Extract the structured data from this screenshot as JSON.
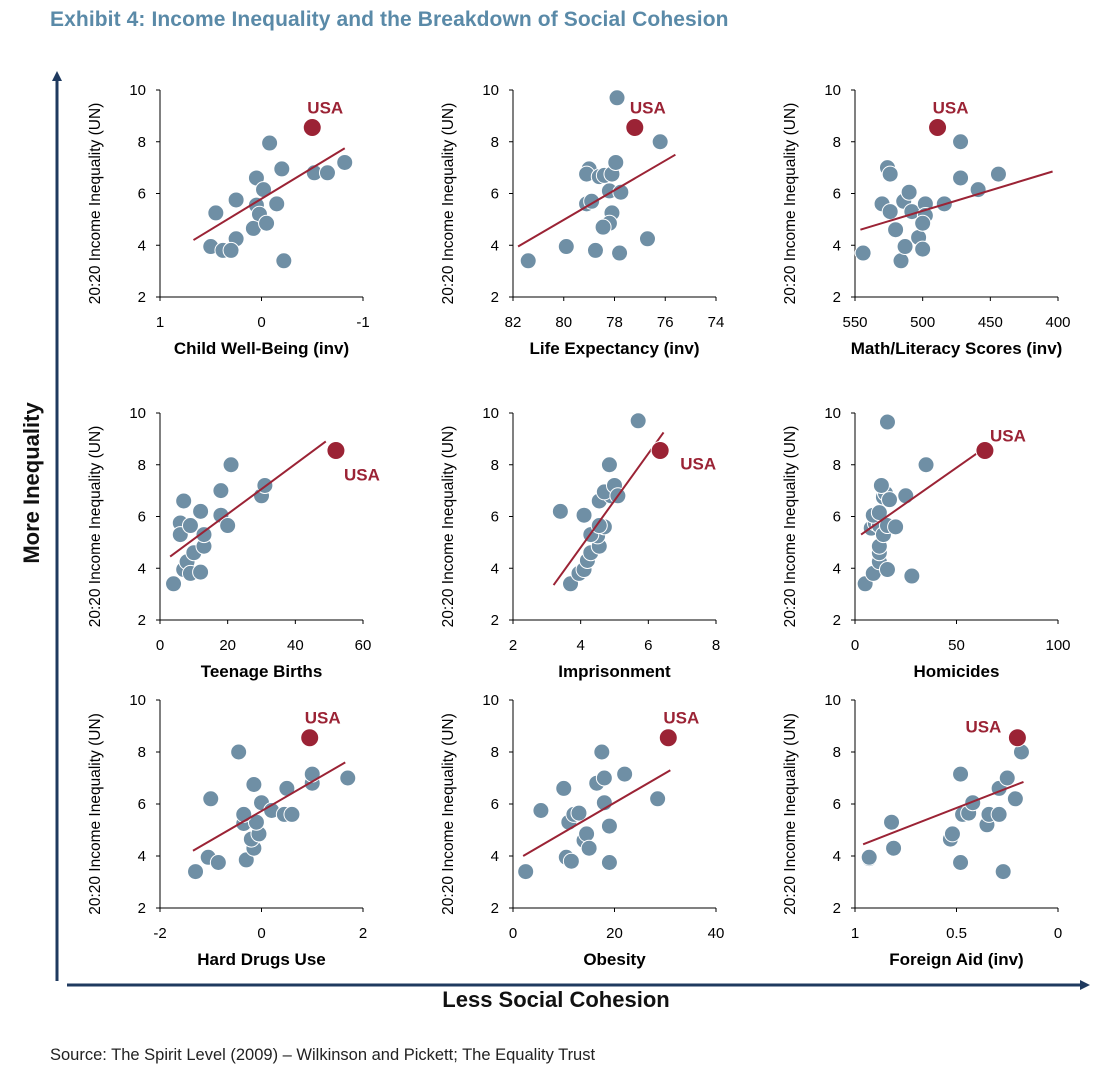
{
  "title": "Exhibit 4: Income Inequality and the Breakdown of Social Cohesion",
  "x_axis_title": "Less Social Cohesion",
  "y_axis_title": "More Inequality",
  "source": "Source: The Spirit Level (2009) – Wilkinson and Pickett; The Equality Trust",
  "colors": {
    "title": "#5a8aa8",
    "point": "#6f8fa5",
    "usa": "#9b2335",
    "trend": "#9b2335",
    "arrow": "#1f3a5f"
  },
  "chart_data": [
    {
      "type": "scatter",
      "xlabel": "Child Well-Being (inv)",
      "ylabel": "20:20 Income Inequality (UN)",
      "xlim": [
        1,
        -1
      ],
      "xticks": [
        1,
        0,
        -1
      ],
      "ylim": [
        2,
        10
      ],
      "yticks": [
        2,
        4,
        6,
        8,
        10
      ],
      "trend": [
        [
          0.67,
          4.2
        ],
        [
          -0.82,
          7.75
        ]
      ],
      "usa": {
        "label": "USA",
        "x": -0.5,
        "y": 8.55,
        "label_pos": "above"
      },
      "points": [
        [
          0.5,
          3.95
        ],
        [
          0.38,
          3.8
        ],
        [
          0.25,
          4.25
        ],
        [
          0.3,
          3.8
        ],
        [
          0.45,
          5.25
        ],
        [
          0.25,
          5.75
        ],
        [
          0.05,
          5.55
        ],
        [
          0.05,
          6.6
        ],
        [
          -0.02,
          6.15
        ],
        [
          0.02,
          5.2
        ],
        [
          0.08,
          4.65
        ],
        [
          -0.05,
          4.85
        ],
        [
          -0.15,
          5.6
        ],
        [
          -0.08,
          7.95
        ],
        [
          -0.2,
          6.95
        ],
        [
          -0.22,
          3.4
        ],
        [
          -0.52,
          6.8
        ],
        [
          -0.65,
          6.8
        ],
        [
          -0.82,
          7.2
        ]
      ]
    },
    {
      "type": "scatter",
      "xlabel": "Life Expectancy (inv)",
      "ylabel": "20:20 Income Inequality (UN)",
      "xlim": [
        82,
        74
      ],
      "xticks": [
        82,
        80,
        78,
        76,
        74
      ],
      "ylim": [
        2,
        10
      ],
      "yticks": [
        2,
        4,
        6,
        8,
        10
      ],
      "trend": [
        [
          81.8,
          3.95
        ],
        [
          75.6,
          7.5
        ]
      ],
      "usa": {
        "label": "USA",
        "x": 77.2,
        "y": 8.55,
        "label_pos": "above"
      },
      "points": [
        [
          81.4,
          3.4
        ],
        [
          79.9,
          3.95
        ],
        [
          79.1,
          5.6
        ],
        [
          78.9,
          5.7
        ],
        [
          79,
          6.95
        ],
        [
          79.1,
          6.75
        ],
        [
          78.6,
          6.65
        ],
        [
          78.4,
          6.7
        ],
        [
          78.1,
          6.75
        ],
        [
          77.95,
          7.2
        ],
        [
          78.2,
          6.1
        ],
        [
          77.75,
          6.05
        ],
        [
          78.1,
          5.25
        ],
        [
          78.2,
          4.85
        ],
        [
          78.45,
          4.7
        ],
        [
          78.75,
          3.8
        ],
        [
          77.8,
          3.7
        ],
        [
          77.9,
          9.7
        ],
        [
          76.7,
          4.25
        ],
        [
          76.2,
          8.0
        ]
      ]
    },
    {
      "type": "scatter",
      "xlabel": "Math/Literacy Scores (inv)",
      "ylabel": "20:20 Income Inequality (UN)",
      "xlim": [
        550,
        400
      ],
      "xticks": [
        550,
        500,
        450,
        400
      ],
      "ylim": [
        2,
        10
      ],
      "yticks": [
        2,
        4,
        6,
        8,
        10
      ],
      "trend": [
        [
          546,
          4.6
        ],
        [
          404,
          6.85
        ]
      ],
      "usa": {
        "label": "USA",
        "x": 489,
        "y": 8.55,
        "label_pos": "above"
      },
      "points": [
        [
          544,
          3.7
        ],
        [
          530,
          5.6
        ],
        [
          524,
          5.3
        ],
        [
          526,
          7.0
        ],
        [
          524,
          6.75
        ],
        [
          520,
          4.6
        ],
        [
          516,
          3.4
        ],
        [
          513,
          3.95
        ],
        [
          514,
          5.7
        ],
        [
          510,
          6.05
        ],
        [
          508,
          5.3
        ],
        [
          503,
          4.3
        ],
        [
          498,
          5.6
        ],
        [
          498,
          5.15
        ],
        [
          500,
          4.85
        ],
        [
          500,
          3.85
        ],
        [
          484,
          5.6
        ],
        [
          472,
          8.0
        ],
        [
          472,
          6.6
        ],
        [
          459,
          6.15
        ],
        [
          444,
          6.75
        ]
      ]
    },
    {
      "type": "scatter",
      "xlabel": "Teenage Births",
      "ylabel": "20:20 Income Inequality (UN)",
      "xlim": [
        0,
        60
      ],
      "xticks": [
        0,
        20,
        40,
        60
      ],
      "ylim": [
        2,
        10
      ],
      "yticks": [
        2,
        4,
        6,
        8,
        10
      ],
      "trend": [
        [
          3,
          4.45
        ],
        [
          49,
          8.9
        ]
      ],
      "usa": {
        "label": "USA",
        "x": 52,
        "y": 8.55,
        "label_pos": "below-right"
      },
      "points": [
        [
          4,
          3.4
        ],
        [
          7,
          3.95
        ],
        [
          8,
          4.25
        ],
        [
          9,
          3.8
        ],
        [
          10,
          4.6
        ],
        [
          12,
          3.85
        ],
        [
          13,
          4.85
        ],
        [
          13,
          5.3
        ],
        [
          12,
          6.2
        ],
        [
          6,
          5.75
        ],
        [
          6,
          5.3
        ],
        [
          9,
          5.65
        ],
        [
          7,
          6.6
        ],
        [
          18,
          6.05
        ],
        [
          20,
          5.65
        ],
        [
          18,
          7.0
        ],
        [
          21,
          8.0
        ],
        [
          30,
          6.8
        ],
        [
          31,
          7.2
        ]
      ]
    },
    {
      "type": "scatter",
      "xlabel": "Imprisonment",
      "ylabel": "20:20 Income Inequality (UN)",
      "xlim": [
        2,
        8
      ],
      "xticks": [
        2,
        4,
        6,
        8
      ],
      "ylim": [
        2,
        10
      ],
      "yticks": [
        2,
        4,
        6,
        8,
        10
      ],
      "trend": [
        [
          3.2,
          3.35
        ],
        [
          6.45,
          9.25
        ]
      ],
      "usa": {
        "label": "USA",
        "x": 6.35,
        "y": 8.55,
        "label_pos": "right"
      },
      "points": [
        [
          3.7,
          3.4
        ],
        [
          3.95,
          3.8
        ],
        [
          4.1,
          3.95
        ],
        [
          4.2,
          4.3
        ],
        [
          4.3,
          4.6
        ],
        [
          4.55,
          4.85
        ],
        [
          4.5,
          5.25
        ],
        [
          4.7,
          5.6
        ],
        [
          4.3,
          5.3
        ],
        [
          4.55,
          5.65
        ],
        [
          4.1,
          6.05
        ],
        [
          3.4,
          6.2
        ],
        [
          4.55,
          6.6
        ],
        [
          4.9,
          6.8
        ],
        [
          4.7,
          6.95
        ],
        [
          5.0,
          7.2
        ],
        [
          5.1,
          6.8
        ],
        [
          4.85,
          8.0
        ],
        [
          5.7,
          9.7
        ]
      ]
    },
    {
      "type": "scatter",
      "xlabel": "Homicides",
      "ylabel": "20:20 Income Inequality (UN)",
      "xlim": [
        0,
        100
      ],
      "xticks": [
        0,
        50,
        100
      ],
      "ylim": [
        2,
        10
      ],
      "yticks": [
        2,
        4,
        6,
        8,
        10
      ],
      "trend": [
        [
          3,
          5.3
        ],
        [
          63,
          8.6
        ]
      ],
      "usa": {
        "label": "USA",
        "x": 64,
        "y": 8.55,
        "label_pos": "above-right"
      },
      "points": [
        [
          5,
          3.4
        ],
        [
          9,
          3.8
        ],
        [
          12,
          4.25
        ],
        [
          12,
          4.6
        ],
        [
          12,
          4.85
        ],
        [
          16,
          3.95
        ],
        [
          28,
          3.7
        ],
        [
          8,
          5.55
        ],
        [
          10,
          5.75
        ],
        [
          12,
          5.65
        ],
        [
          14,
          5.3
        ],
        [
          16,
          5.65
        ],
        [
          20,
          5.6
        ],
        [
          9,
          6.05
        ],
        [
          12,
          6.15
        ],
        [
          14,
          6.75
        ],
        [
          15,
          6.9
        ],
        [
          13,
          7.2
        ],
        [
          17,
          6.65
        ],
        [
          25,
          6.8
        ],
        [
          35,
          8.0
        ],
        [
          16,
          9.65
        ]
      ]
    },
    {
      "type": "scatter",
      "xlabel": "Hard Drugs Use",
      "ylabel": "20:20 Income Inequality (UN)",
      "xlim": [
        -2,
        2
      ],
      "xticks": [
        -2,
        0,
        2
      ],
      "ylim": [
        2,
        10
      ],
      "yticks": [
        2,
        4,
        6,
        8,
        10
      ],
      "trend": [
        [
          -1.35,
          4.2
        ],
        [
          1.65,
          7.6
        ]
      ],
      "usa": {
        "label": "USA",
        "x": 0.95,
        "y": 8.55,
        "label_pos": "above"
      },
      "points": [
        [
          -1.3,
          3.4
        ],
        [
          -1.05,
          3.95
        ],
        [
          -0.85,
          3.75
        ],
        [
          -1.0,
          6.2
        ],
        [
          -0.45,
          8.0
        ],
        [
          -0.3,
          3.85
        ],
        [
          -0.15,
          4.3
        ],
        [
          -0.2,
          4.65
        ],
        [
          -0.05,
          4.85
        ],
        [
          -0.35,
          5.25
        ],
        [
          -0.1,
          5.3
        ],
        [
          -0.35,
          5.6
        ],
        [
          0.0,
          6.05
        ],
        [
          -0.15,
          6.75
        ],
        [
          0.2,
          5.75
        ],
        [
          0.45,
          5.6
        ],
        [
          0.6,
          5.6
        ],
        [
          0.5,
          6.6
        ],
        [
          1.0,
          6.8
        ],
        [
          1.0,
          7.15
        ],
        [
          1.7,
          7.0
        ]
      ]
    },
    {
      "type": "scatter",
      "xlabel": "Obesity",
      "ylabel": "20:20 Income Inequality (UN)",
      "xlim": [
        0,
        40
      ],
      "xticks": [
        0,
        20,
        40
      ],
      "ylim": [
        2,
        10
      ],
      "yticks": [
        2,
        4,
        6,
        8,
        10
      ],
      "trend": [
        [
          2,
          4.0
        ],
        [
          31,
          7.3
        ]
      ],
      "usa": {
        "label": "USA",
        "x": 30.6,
        "y": 8.55,
        "label_pos": "above"
      },
      "points": [
        [
          2.5,
          3.4
        ],
        [
          10.5,
          3.95
        ],
        [
          11.5,
          3.8
        ],
        [
          14,
          4.6
        ],
        [
          14.5,
          4.85
        ],
        [
          15,
          4.3
        ],
        [
          19,
          3.75
        ],
        [
          5.5,
          5.75
        ],
        [
          11,
          5.3
        ],
        [
          12,
          5.6
        ],
        [
          13,
          5.65
        ],
        [
          18,
          6.05
        ],
        [
          19,
          5.15
        ],
        [
          10,
          6.6
        ],
        [
          16.5,
          6.8
        ],
        [
          18,
          7.0
        ],
        [
          22,
          7.15
        ],
        [
          17.5,
          8.0
        ],
        [
          28.5,
          6.2
        ]
      ]
    },
    {
      "type": "scatter",
      "xlabel": "Foreign Aid (inv)",
      "ylabel": "20:20 Income Inequality (UN)",
      "xlim": [
        1,
        0
      ],
      "xticks": [
        1,
        0.5,
        0
      ],
      "ylim": [
        2,
        10
      ],
      "yticks": [
        2,
        4,
        6,
        8,
        10
      ],
      "trend": [
        [
          0.96,
          4.45
        ],
        [
          0.17,
          6.85
        ]
      ],
      "usa": {
        "label": "USA",
        "x": 0.2,
        "y": 8.55,
        "label_pos": "upper-left"
      },
      "points": [
        [
          0.93,
          3.9
        ],
        [
          0.93,
          3.95
        ],
        [
          0.82,
          5.3
        ],
        [
          0.81,
          4.3
        ],
        [
          0.53,
          4.65
        ],
        [
          0.52,
          4.85
        ],
        [
          0.48,
          3.75
        ],
        [
          0.47,
          5.6
        ],
        [
          0.44,
          5.65
        ],
        [
          0.42,
          6.05
        ],
        [
          0.35,
          5.2
        ],
        [
          0.34,
          5.6
        ],
        [
          0.29,
          5.6
        ],
        [
          0.29,
          6.6
        ],
        [
          0.27,
          3.4
        ],
        [
          0.25,
          7.0
        ],
        [
          0.21,
          6.2
        ],
        [
          0.48,
          7.15
        ],
        [
          0.18,
          8.0
        ]
      ]
    }
  ]
}
